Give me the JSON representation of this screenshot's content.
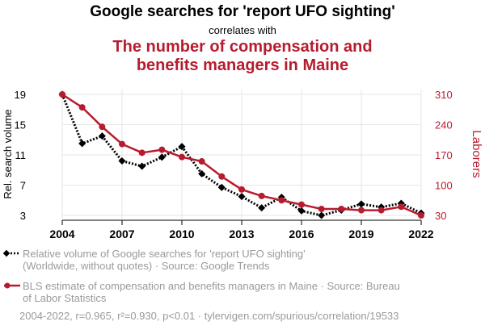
{
  "header": {
    "title": "Google searches for 'report UFO sighting'",
    "subtitle": "correlates with",
    "title2_line1": "The number of compensation and",
    "title2_line2": "benefits managers in Maine"
  },
  "chart_data": {
    "type": "line",
    "x": [
      2004,
      2005,
      2006,
      2007,
      2008,
      2009,
      2010,
      2011,
      2012,
      2013,
      2014,
      2015,
      2016,
      2017,
      2018,
      2019,
      2020,
      2021,
      2022
    ],
    "x_ticks": [
      "2004",
      "2007",
      "2010",
      "2013",
      "2016",
      "2019",
      "2022"
    ],
    "xlim": [
      2004,
      2022
    ],
    "series": [
      {
        "name": "Relative volume of Google searches for 'report UFO sighting' (Worldwide, without quotes)",
        "axis": "left",
        "color": "#000000",
        "style": "dotted",
        "marker": "diamond",
        "values": [
          19,
          12.5,
          13.5,
          10.2,
          9.5,
          10.7,
          12.1,
          8.5,
          6.7,
          5.5,
          4,
          5.4,
          3.6,
          3,
          3.7,
          4.5,
          4.1,
          4.6,
          3.3
        ]
      },
      {
        "name": "BLS estimate of compensation and benefits managers in Maine",
        "axis": "right",
        "color": "#b71c2e",
        "style": "solid",
        "marker": "circle",
        "values": [
          310,
          280,
          235,
          195,
          175,
          182,
          165,
          155,
          120,
          90,
          75,
          65,
          55,
          45,
          45,
          42,
          42,
          50,
          30
        ]
      }
    ],
    "y_left": {
      "label": "Rel. search volume",
      "ticks": [
        "3",
        "7",
        "11",
        "15",
        "19"
      ],
      "range": [
        3,
        19
      ]
    },
    "y_right": {
      "label": "Laborers",
      "ticks": [
        "30",
        "100",
        "170",
        "240",
        "310"
      ],
      "range": [
        30,
        310
      ]
    },
    "legend": {
      "entry1_line1": "Relative volume of Google searches for 'report UFO sighting'",
      "entry1_line2": "(Worldwide, without quotes) · Source: Google Trends",
      "entry2_line1": "BLS estimate of compensation and benefits managers in Maine · Source: Bureau",
      "entry2_line2": "of Labor Statistics"
    },
    "footnote": "2004-2022, r=0.965, r²=0.930, p<0.01 · tylervigen.com/spurious/correlation/19533",
    "colors": {
      "left": "#000000",
      "right": "#b71c2e",
      "grid": "#e6e6e6",
      "muted": "#9a9a9a"
    }
  }
}
